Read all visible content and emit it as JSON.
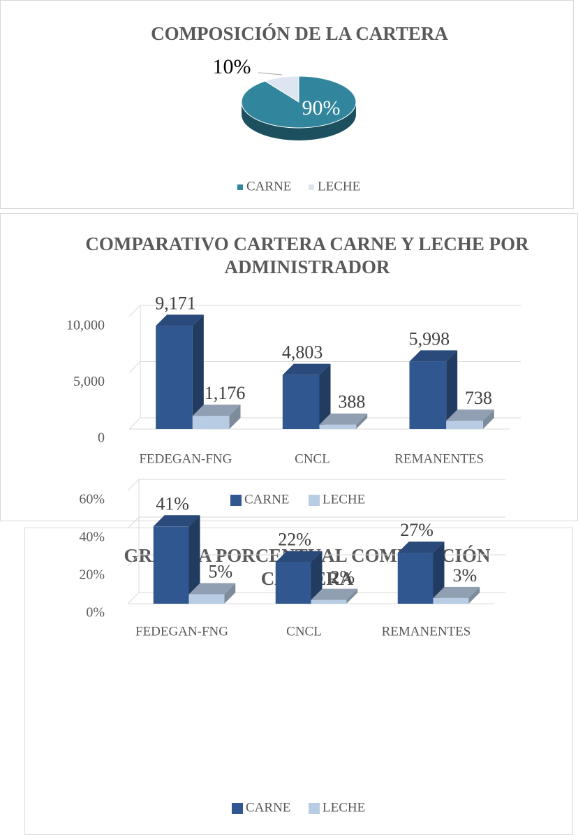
{
  "chart_data": [
    {
      "type": "pie",
      "title": "COMPOSICIÓN DE LA CARTERA",
      "categories": [
        "CARNE",
        "LECHE"
      ],
      "values": [
        90,
        10
      ],
      "value_labels": [
        "90%",
        "10%"
      ],
      "colors": [
        "#31859c",
        "#dde5f0"
      ]
    },
    {
      "type": "bar3d",
      "title": "COMPARATIVO CARTERA CARNE Y LECHE POR ADMINISTRADOR",
      "categories": [
        "FEDEGAN-FNG",
        "CNCL",
        "REMANENTES"
      ],
      "series": [
        {
          "name": "CARNE",
          "color": "#30578f",
          "values": [
            9171,
            4803,
            5998
          ],
          "value_labels": [
            "9,171",
            "4,803",
            "5,998"
          ]
        },
        {
          "name": "LECHE",
          "color": "#b8cce4",
          "values": [
            1176,
            388,
            738
          ],
          "value_labels": [
            "1,176",
            "388",
            "738"
          ]
        }
      ],
      "ylim": [
        0,
        10000
      ],
      "yticks": [
        0,
        {
          "value": 5000,
          "label": "5,000"
        },
        {
          "value": 10000,
          "label": "10,000"
        }
      ],
      "grid": true
    },
    {
      "type": "bar3d",
      "title": "GRÁFICA PORCENTUAL COMPOSICIÓN CARTERA",
      "categories": [
        "FEDEGAN-FNG",
        "CNCL",
        "REMANENTES"
      ],
      "series": [
        {
          "name": "CARNE",
          "color": "#30578f",
          "values": [
            41,
            22,
            27
          ],
          "value_labels": [
            "41%",
            "22%",
            "27%"
          ]
        },
        {
          "name": "LECHE",
          "color": "#b8cce4",
          "values": [
            5,
            2,
            3
          ],
          "value_labels": [
            "5%",
            "2%",
            "3%"
          ]
        }
      ],
      "ylim": [
        0,
        60
      ],
      "yticks": [
        {
          "value": 0,
          "label": "0%"
        },
        {
          "value": 20,
          "label": "20%"
        },
        {
          "value": 40,
          "label": "40%"
        },
        {
          "value": 60,
          "label": "60%"
        }
      ],
      "grid": true
    }
  ]
}
